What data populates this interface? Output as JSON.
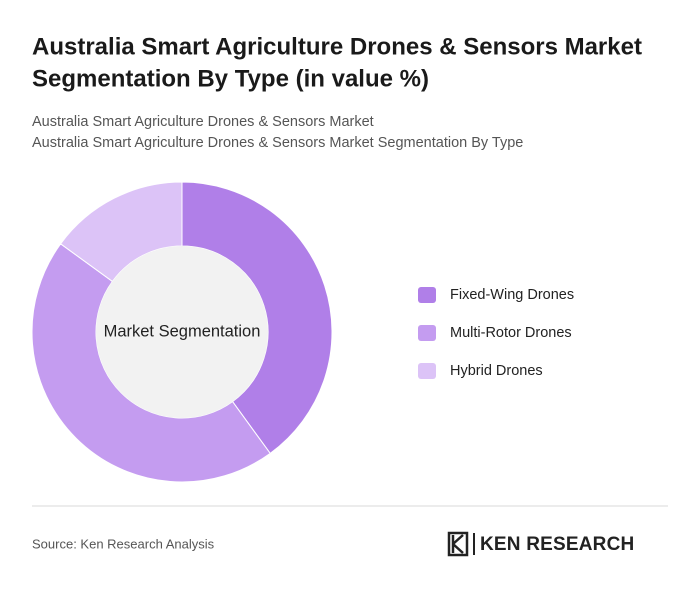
{
  "chart_data": {
    "type": "donut",
    "title": [
      "Australia Smart Agriculture Drones & Sensors Market",
      "Segmentation By Type (in value %)"
    ],
    "subtitle": [
      "Australia Smart Agriculture Drones & Sensors Market",
      "Australia Smart Agriculture Drones & Sensors Market Segmentation By Type"
    ],
    "center_label": "Market Segmentation",
    "categories": [
      "Fixed-Wing Drones",
      "Multi-Rotor Drones",
      "Hybrid Drones"
    ],
    "values": [
      40,
      45,
      15
    ],
    "colors": [
      "#b07fe8",
      "#c49cf0",
      "#dcc3f7"
    ]
  },
  "source": "Source: Ken Research Analysis",
  "logo": "KEN RESEARCH"
}
